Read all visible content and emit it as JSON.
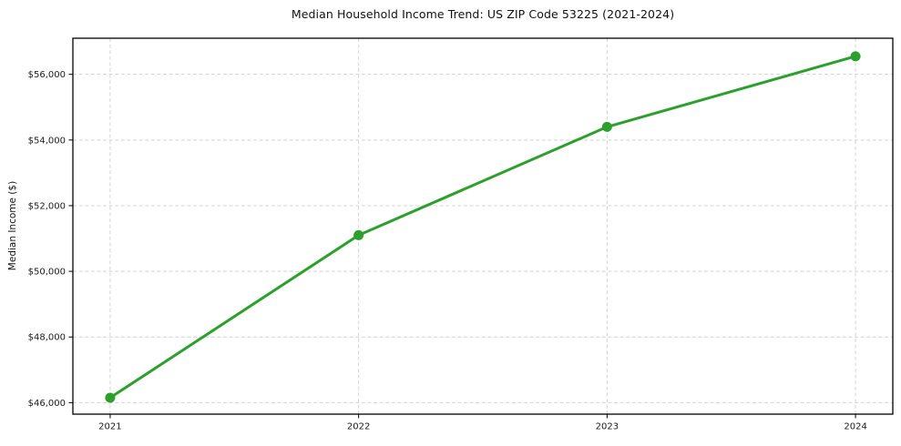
{
  "chart_data": {
    "type": "line",
    "title": "Median Household Income Trend: US ZIP Code 53225 (2021-2024)",
    "xlabel": "",
    "ylabel": "Median Income ($)",
    "x": [
      2021,
      2022,
      2023,
      2024
    ],
    "values": [
      46150,
      51100,
      54400,
      56550
    ],
    "xticks": [
      2021,
      2022,
      2023,
      2024
    ],
    "xtick_labels": [
      "2021",
      "2022",
      "2023",
      "2024"
    ],
    "yticks": [
      46000,
      48000,
      50000,
      52000,
      54000,
      56000
    ],
    "ytick_labels": [
      "$46,000",
      "$48,000",
      "$50,000",
      "$52,000",
      "$54,000",
      "$56,000"
    ],
    "xlim": [
      2020.85,
      2024.15
    ],
    "ylim": [
      45650,
      57100
    ],
    "legend": "none",
    "grid": {
      "visible": true,
      "axis": "both",
      "style": "dashed"
    },
    "marker": "circle",
    "colors": {
      "line": "#2ca02c",
      "marker": "#2ca02c",
      "grid": "#d4d4d4",
      "spine": "#000000",
      "tick_label": "#1a1a1a",
      "background": "#ffffff"
    }
  }
}
